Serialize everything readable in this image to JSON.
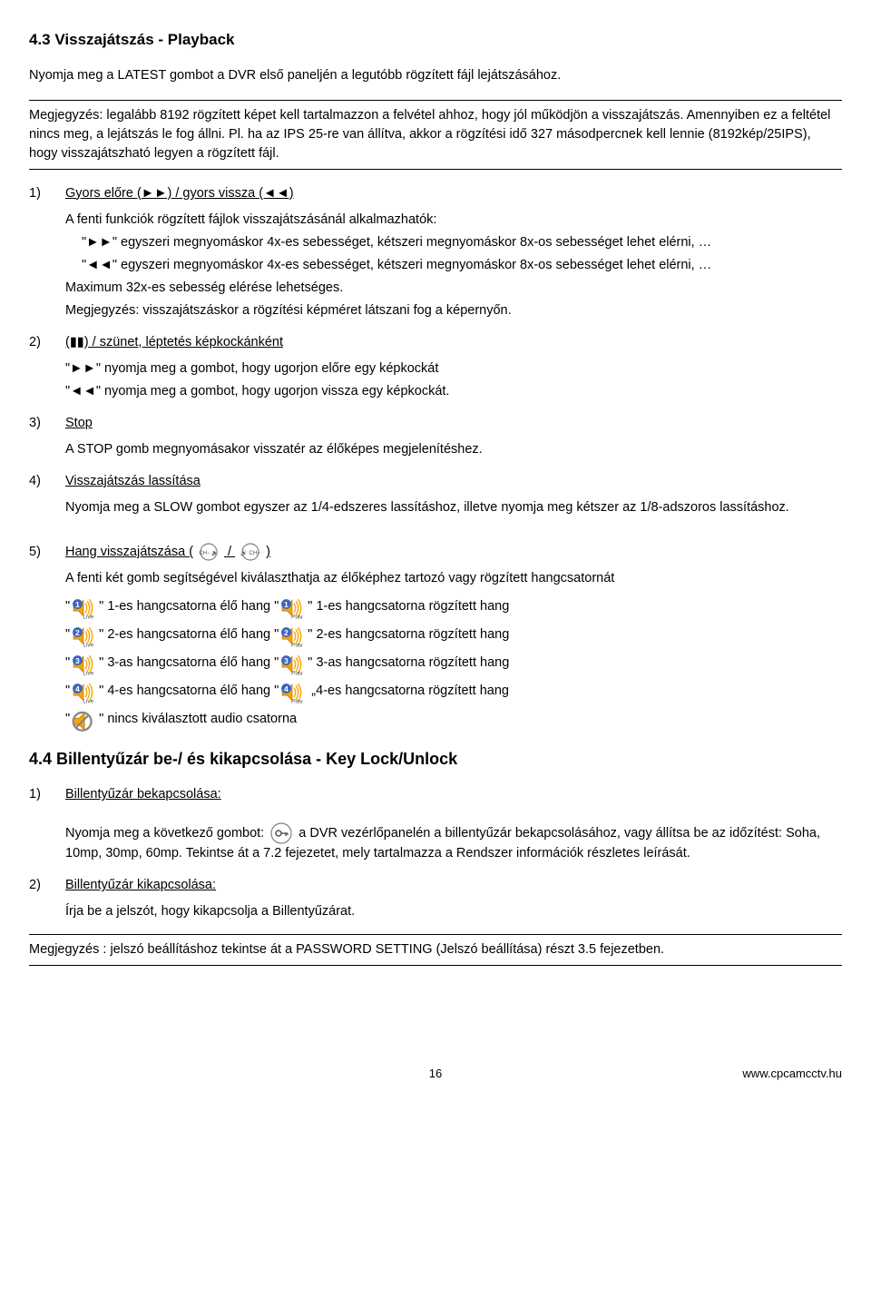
{
  "s43": {
    "heading": "4.3 Visszajátszás - Playback",
    "intro": "Nyomja meg a LATEST gombot a DVR első paneljén a legutóbb rögzített fájl lejátszásához.",
    "note": "Megjegyzés: legalább 8192 rögzített képet kell tartalmazzon a felvétel ahhoz, hogy jól működjön a visszajátszás. Amennyiben ez a feltétel nincs meg, a lejátszás le fog állni. Pl. ha az IPS 25-re van állítva, akkor a rögzítési idő 327 másodpercnek kell lennie (8192kép/25IPS), hogy visszajátszható legyen a rögzített fájl."
  },
  "item1": {
    "num": "1)",
    "label": "Gyors előre (►►) /   gyors vissza (◄◄)",
    "l1": "A fenti funkciók rögzített fájlok visszajátszásánál alkalmazhatók:",
    "l2": "\"►►\" egyszeri megnyomáskor 4x-es sebességet, kétszeri megnyomáskor 8x-os sebességet lehet elérni, …",
    "l3": "\"◄◄\" egyszeri megnyomáskor 4x-es sebességet, kétszeri megnyomáskor 8x-os sebességet lehet elérni, …",
    "l4": "Maximum 32x-es sebesség elérése lehetséges.",
    "l5": "Megjegyzés: visszajátszáskor a rögzítési képméret látszani fog a képernyőn."
  },
  "item2": {
    "num": "2)",
    "label": " (▮▮) / szünet, léptetés képkockánként",
    "l1": "\"►►\" nyomja meg a gombot, hogy ugorjon előre egy képkockát",
    "l2": "\"◄◄\" nyomja meg a gombot, hogy ugorjon vissza egy képkockát."
  },
  "item3": {
    "num": "3)",
    "label": "Stop",
    "l1": "A STOP gomb megnyomásakor visszatér az élőképes megjelenítéshez."
  },
  "item4": {
    "num": "4)",
    "label": "Visszajátszás lassítása",
    "l1": "Nyomja meg a SLOW gombot egyszer az 1/4-edszeres lassításhoz, illetve nyomja meg kétszer az 1/8-adszoros lassításhoz."
  },
  "item5": {
    "num": "5)",
    "label_pre": "Hang visszajátszása (",
    "label_mid": " / ",
    "label_post": ")",
    "intro": "A fenti két gomb segítségével kiválaszthatja az élőképhez tartozó vagy rögzített hangcsatornát",
    "rows": [
      {
        "n": "1",
        "live": "\" 1-es hangcsatorna élő hang \"",
        "rec": "\" 1-es hangcsatorna rögzített hang"
      },
      {
        "n": "2",
        "live": "\" 2-es hangcsatorna élő hang \"",
        "rec": "\" 2-es hangcsatorna rögzített hang"
      },
      {
        "n": "3",
        "live": "\" 3-as hangcsatorna élő hang \"",
        "rec": "\" 3-as hangcsatorna rögzített hang"
      },
      {
        "n": "4",
        "live": "\" 4-es hangcsatorna élő hang \"",
        "rec": " „4-es hangcsatorna rögzített hang"
      }
    ],
    "none_pre": "\"",
    "none_post": "\" nincs kiválasztott audio csatorna"
  },
  "s44": {
    "heading": "4.4 Billentyűzár be-/ és kikapcsolása - Key Lock/Unlock"
  },
  "k1": {
    "num": "1)",
    "label": "Billentyűzár bekapcsolása:",
    "pre": "Nyomja meg a következő gombot: ",
    "post": " a DVR vezérlőpanelén a billentyűzár bekapcsolásához, vagy állítsa be az időzítést: Soha, 10mp, 30mp, 60mp. Tekintse át a 7.2 fejezetet, mely tartalmazza a Rendszer információk részletes leírását."
  },
  "k2": {
    "num": "2)",
    "label": "Billentyűzár kikapcsolása:",
    "l1": "Írja be a jelszót, hogy kikapcsolja a Billentyűzárat."
  },
  "note2": "Megjegyzés : jelszó beállításhoz tekintse át a PASSWORD SETTING (Jelszó beállítása) részt 3.5 fejezetben.",
  "footer": {
    "page": "16",
    "url": "www.cpcamcctv.hu"
  },
  "icons": {
    "circle_stroke": "#808080",
    "speaker_fill": "#f7a600",
    "speaker_stroke": "#d07a00",
    "num_fill": "#3b64c4",
    "sub_fill": "#555"
  }
}
